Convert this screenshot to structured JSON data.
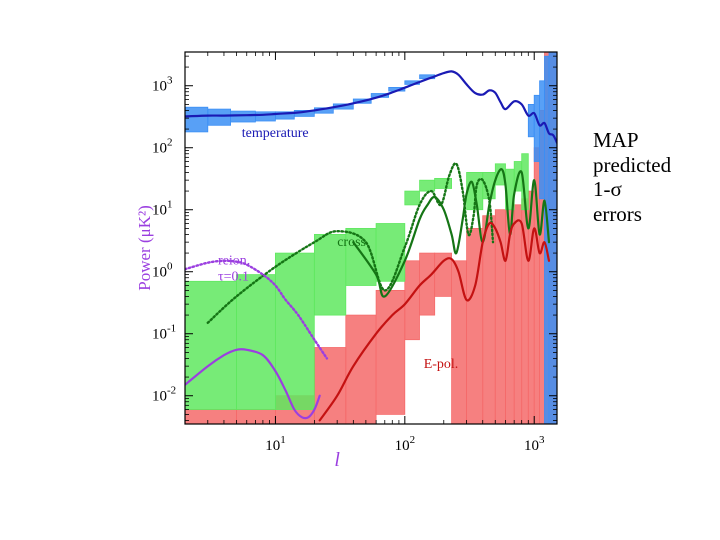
{
  "side_note": {
    "line1": "MAP",
    "line2": "predicted",
    "line3": "1-σ",
    "line4": "errors"
  },
  "chart_data": {
    "type": "line",
    "title": "",
    "xlabel": "l",
    "ylabel": "Power (μK²)",
    "xscale": "log",
    "yscale": "log",
    "xlim": [
      2,
      1500
    ],
    "ylim": [
      0.0035,
      3500
    ],
    "x_ticks": [
      {
        "value": 10,
        "label": "10^1"
      },
      {
        "value": 100,
        "label": "10^2"
      },
      {
        "value": 1000,
        "label": "10^3"
      }
    ],
    "y_ticks": [
      {
        "value": 0.01,
        "label": "10^-2"
      },
      {
        "value": 0.1,
        "label": "10^-1"
      },
      {
        "value": 1,
        "label": "10^0"
      },
      {
        "value": 10,
        "label": "10^1"
      },
      {
        "value": 100,
        "label": "10^2"
      },
      {
        "value": 1000,
        "label": "10^3"
      }
    ],
    "colors": {
      "temperature": "#1a1ab4",
      "temperature_box": "#3b8ff5",
      "cross": "#157515",
      "cross_box": "#5fe85f",
      "epol": "#c41212",
      "epol_box": "#f56a6a",
      "reion": "#9b3fe0"
    },
    "annotations": [
      {
        "text": "temperature",
        "series": "temperature",
        "x": 5.5,
        "y": 150
      },
      {
        "text": "cross",
        "series": "cross",
        "x": 30,
        "y": 2.6
      },
      {
        "text": "reion.",
        "series": "reion",
        "x": 3.6,
        "y": 1.3
      },
      {
        "text": "τ=0.1",
        "series": "reion",
        "x": 3.6,
        "y": 0.72
      },
      {
        "text": "E-pol.",
        "series": "epol",
        "x": 140,
        "y": 0.028
      }
    ],
    "series": [
      {
        "name": "temperature",
        "style": "solid",
        "x": [
          2,
          3,
          4,
          6,
          8,
          10,
          15,
          20,
          30,
          40,
          60,
          80,
          100,
          130,
          160,
          200,
          230,
          260,
          300,
          350,
          400,
          450,
          500,
          550,
          600,
          700,
          800,
          900,
          1000,
          1100,
          1200,
          1300,
          1400,
          1500
        ],
        "y": [
          320,
          330,
          330,
          335,
          340,
          350,
          370,
          400,
          460,
          520,
          640,
          780,
          930,
          1150,
          1350,
          1600,
          1700,
          1500,
          1050,
          760,
          720,
          840,
          770,
          540,
          420,
          560,
          500,
          330,
          360,
          230,
          250,
          170,
          160,
          120
        ]
      },
      {
        "name": "cross",
        "style": "dotted",
        "x": [
          3,
          5,
          10,
          20,
          30,
          50,
          70,
          100,
          130,
          160,
          190,
          220,
          250,
          280,
          310,
          340,
          360,
          400,
          450,
          480
        ],
        "y": [
          0.15,
          0.4,
          1.2,
          3.0,
          4.5,
          3.0,
          0.5,
          2.5,
          12,
          20,
          12,
          35,
          55,
          20,
          4,
          8,
          25,
          30,
          14,
          3
        ]
      },
      {
        "name": "cross",
        "style": "solid",
        "x": [
          40,
          60,
          70,
          100,
          130,
          150,
          170,
          200,
          230,
          250,
          280,
          300,
          330,
          360,
          400,
          450,
          500,
          560,
          600,
          650,
          700,
          800,
          900,
          1000,
          1100,
          1200,
          1300
        ],
        "y": [
          3,
          0.9,
          0.4,
          1.5,
          7,
          12,
          16,
          10,
          4,
          2,
          7,
          18,
          28,
          12,
          3,
          12,
          30,
          45,
          25,
          4,
          18,
          40,
          5,
          30,
          4,
          14,
          3
        ]
      },
      {
        "name": "reion",
        "style": "dotted",
        "x": [
          2,
          3,
          4,
          5,
          6,
          8,
          10,
          12,
          15,
          20,
          25
        ],
        "y": [
          1.1,
          1.4,
          1.5,
          1.45,
          1.3,
          0.9,
          0.6,
          0.35,
          0.2,
          0.08,
          0.04
        ]
      },
      {
        "name": "reion",
        "style": "solid",
        "x": [
          2,
          3,
          4,
          5,
          6,
          8,
          10,
          12,
          14,
          16,
          18,
          20,
          22
        ],
        "y": [
          0.015,
          0.03,
          0.045,
          0.055,
          0.055,
          0.045,
          0.025,
          0.012,
          0.006,
          0.0045,
          0.0045,
          0.006,
          0.01
        ]
      },
      {
        "name": "E-pol.",
        "style": "solid",
        "x": [
          22,
          30,
          40,
          60,
          80,
          100,
          130,
          160,
          200,
          230,
          260,
          300,
          350,
          400,
          450,
          500,
          550,
          600,
          650,
          700,
          800,
          900,
          1000,
          1100,
          1200,
          1300
        ],
        "y": [
          0.004,
          0.01,
          0.03,
          0.1,
          0.2,
          0.3,
          0.6,
          0.9,
          1.5,
          1.6,
          1.0,
          0.35,
          0.6,
          3.0,
          6.0,
          5.0,
          3.0,
          1.5,
          4.0,
          6.0,
          6.0,
          1.5,
          5.0,
          2.0,
          3.0,
          1.5
        ]
      }
    ],
    "error_boxes": {
      "temperature": [
        {
          "x0": 2,
          "x1": 3,
          "lo": 180,
          "hi": 450
        },
        {
          "x0": 3,
          "x1": 4.5,
          "lo": 230,
          "hi": 420
        },
        {
          "x0": 4.5,
          "x1": 7,
          "lo": 260,
          "hi": 390
        },
        {
          "x0": 7,
          "x1": 10,
          "lo": 270,
          "hi": 380
        },
        {
          "x0": 10,
          "x1": 14,
          "lo": 290,
          "hi": 380
        },
        {
          "x0": 14,
          "x1": 20,
          "lo": 320,
          "hi": 400
        },
        {
          "x0": 20,
          "x1": 28,
          "lo": 360,
          "hi": 440
        },
        {
          "x0": 28,
          "x1": 40,
          "lo": 420,
          "hi": 510
        },
        {
          "x0": 40,
          "x1": 55,
          "lo": 520,
          "hi": 610
        },
        {
          "x0": 55,
          "x1": 75,
          "lo": 650,
          "hi": 750
        },
        {
          "x0": 75,
          "x1": 100,
          "lo": 820,
          "hi": 940
        },
        {
          "x0": 100,
          "x1": 130,
          "lo": 1050,
          "hi": 1200
        },
        {
          "x0": 130,
          "x1": 170,
          "lo": 1300,
          "hi": 1500
        },
        {
          "x0": 900,
          "x1": 1000,
          "lo": 150,
          "hi": 500
        },
        {
          "x0": 1000,
          "x1": 1100,
          "lo": 60,
          "hi": 700
        },
        {
          "x0": 1100,
          "x1": 1200,
          "lo": 15,
          "hi": 1200
        },
        {
          "x0": 1200,
          "x1": 1300,
          "lo": 0.0035,
          "hi": 3000
        },
        {
          "x0": 1300,
          "x1": 1500,
          "lo": 0.0035,
          "hi": 3500
        }
      ],
      "cross": [
        {
          "x0": 2,
          "x1": 5,
          "lo": 0.006,
          "hi": 0.7
        },
        {
          "x0": 5,
          "x1": 10,
          "lo": 0.006,
          "hi": 0.9
        },
        {
          "x0": 10,
          "x1": 20,
          "lo": 0.006,
          "hi": 2.0
        },
        {
          "x0": 20,
          "x1": 35,
          "lo": 0.2,
          "hi": 4.0
        },
        {
          "x0": 35,
          "x1": 60,
          "lo": 0.6,
          "hi": 5.0
        },
        {
          "x0": 60,
          "x1": 100,
          "lo": 0.7,
          "hi": 6.0
        },
        {
          "x0": 100,
          "x1": 130,
          "lo": 12,
          "hi": 20
        },
        {
          "x0": 130,
          "x1": 170,
          "lo": 20,
          "hi": 30
        },
        {
          "x0": 170,
          "x1": 230,
          "lo": 22,
          "hi": 32
        },
        {
          "x0": 300,
          "x1": 400,
          "lo": 10,
          "hi": 40
        },
        {
          "x0": 400,
          "x1": 500,
          "lo": 15,
          "hi": 40
        },
        {
          "x0": 500,
          "x1": 600,
          "lo": 25,
          "hi": 55
        },
        {
          "x0": 600,
          "x1": 700,
          "lo": 10,
          "hi": 45
        },
        {
          "x0": 700,
          "x1": 800,
          "lo": 20,
          "hi": 60
        },
        {
          "x0": 800,
          "x1": 900,
          "lo": 10,
          "hi": 80
        }
      ],
      "epol": [
        {
          "x0": 2,
          "x1": 5,
          "lo": 0.0035,
          "hi": 0.006
        },
        {
          "x0": 5,
          "x1": 10,
          "lo": 0.0035,
          "hi": 0.006
        },
        {
          "x0": 10,
          "x1": 20,
          "lo": 0.0035,
          "hi": 0.01
        },
        {
          "x0": 20,
          "x1": 35,
          "lo": 0.0035,
          "hi": 0.06
        },
        {
          "x0": 35,
          "x1": 60,
          "lo": 0.0035,
          "hi": 0.2
        },
        {
          "x0": 60,
          "x1": 100,
          "lo": 0.005,
          "hi": 0.5
        },
        {
          "x0": 100,
          "x1": 130,
          "lo": 0.08,
          "hi": 1.5
        },
        {
          "x0": 130,
          "x1": 170,
          "lo": 0.2,
          "hi": 2.0
        },
        {
          "x0": 170,
          "x1": 230,
          "lo": 0.4,
          "hi": 2.0
        },
        {
          "x0": 230,
          "x1": 300,
          "lo": 0.0035,
          "hi": 1.5
        },
        {
          "x0": 300,
          "x1": 400,
          "lo": 0.0035,
          "hi": 5.0
        },
        {
          "x0": 400,
          "x1": 500,
          "lo": 0.0035,
          "hi": 8.0
        },
        {
          "x0": 500,
          "x1": 600,
          "lo": 0.0035,
          "hi": 10
        },
        {
          "x0": 600,
          "x1": 700,
          "lo": 0.0035,
          "hi": 10
        },
        {
          "x0": 700,
          "x1": 800,
          "lo": 0.0035,
          "hi": 12
        },
        {
          "x0": 800,
          "x1": 900,
          "lo": 0.0035,
          "hi": 15
        },
        {
          "x0": 900,
          "x1": 1000,
          "lo": 0.0035,
          "hi": 20
        },
        {
          "x0": 1000,
          "x1": 1100,
          "lo": 0.0035,
          "hi": 100
        },
        {
          "x0": 1100,
          "x1": 1200,
          "lo": 0.0035,
          "hi": 400
        },
        {
          "x0": 1200,
          "x1": 1500,
          "lo": 0.0035,
          "hi": 3500
        }
      ]
    }
  }
}
